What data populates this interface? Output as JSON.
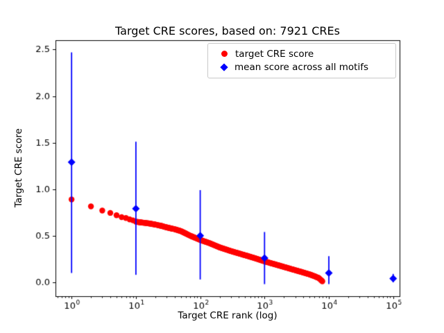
{
  "chart_data": {
    "type": "scatter",
    "title": "Target CRE scores, based on: 7921 CREs",
    "xlabel": "Target CRE rank (log)",
    "ylabel": "Target CRE score",
    "x_scale": "log",
    "xlim_log10": [
      -0.25,
      5.1
    ],
    "ylim": [
      -0.15,
      2.6
    ],
    "x_tick_exponents": [
      0,
      1,
      2,
      3,
      4,
      5
    ],
    "y_tick_labels": [
      "0.0",
      "0.5",
      "1.0",
      "1.5",
      "2.0",
      "2.5"
    ],
    "grid": false,
    "legend_position": "upper right",
    "legend": [
      {
        "label": "target CRE score",
        "marker": "circle",
        "color": "#ff0000"
      },
      {
        "label": "mean score across all motifs",
        "marker": "diamond",
        "color": "#0000ff"
      }
    ],
    "series": [
      {
        "name": "target CRE score",
        "type": "scatter",
        "marker": "circle",
        "color": "#ff0000",
        "n_points_depicted": 7921,
        "note": "~7921 red points forming a dense decreasing band vs log rank; anchors are (rank, score) read off the plot",
        "anchors": [
          [
            1,
            0.89
          ],
          [
            2,
            0.815
          ],
          [
            3,
            0.77
          ],
          [
            4,
            0.745
          ],
          [
            5,
            0.72
          ],
          [
            6,
            0.7
          ],
          [
            7,
            0.69
          ],
          [
            8,
            0.675
          ],
          [
            9,
            0.665
          ],
          [
            10,
            0.65
          ],
          [
            13,
            0.64
          ],
          [
            16,
            0.632
          ],
          [
            20,
            0.62
          ],
          [
            25,
            0.605
          ],
          [
            30,
            0.59
          ],
          [
            40,
            0.57
          ],
          [
            50,
            0.55
          ],
          [
            70,
            0.5
          ],
          [
            100,
            0.455
          ],
          [
            140,
            0.42
          ],
          [
            200,
            0.375
          ],
          [
            300,
            0.335
          ],
          [
            500,
            0.29
          ],
          [
            700,
            0.26
          ],
          [
            1000,
            0.225
          ],
          [
            1500,
            0.19
          ],
          [
            2000,
            0.165
          ],
          [
            3000,
            0.13
          ],
          [
            4000,
            0.105
          ],
          [
            5000,
            0.085
          ],
          [
            6000,
            0.065
          ],
          [
            7000,
            0.045
          ],
          [
            7921,
            0.01
          ]
        ]
      },
      {
        "name": "mean score across all motifs",
        "type": "errorbar",
        "marker": "diamond",
        "color": "#0000ff",
        "x": [
          1,
          10,
          100,
          1000,
          10000,
          100000
        ],
        "mean": [
          1.29,
          0.79,
          0.5,
          0.26,
          0.1,
          0.04
        ],
        "bar_min": [
          0.1,
          0.08,
          0.03,
          -0.02,
          -0.02,
          0.0
        ],
        "bar_max": [
          2.47,
          1.51,
          0.99,
          0.54,
          0.28,
          0.09
        ]
      }
    ]
  }
}
